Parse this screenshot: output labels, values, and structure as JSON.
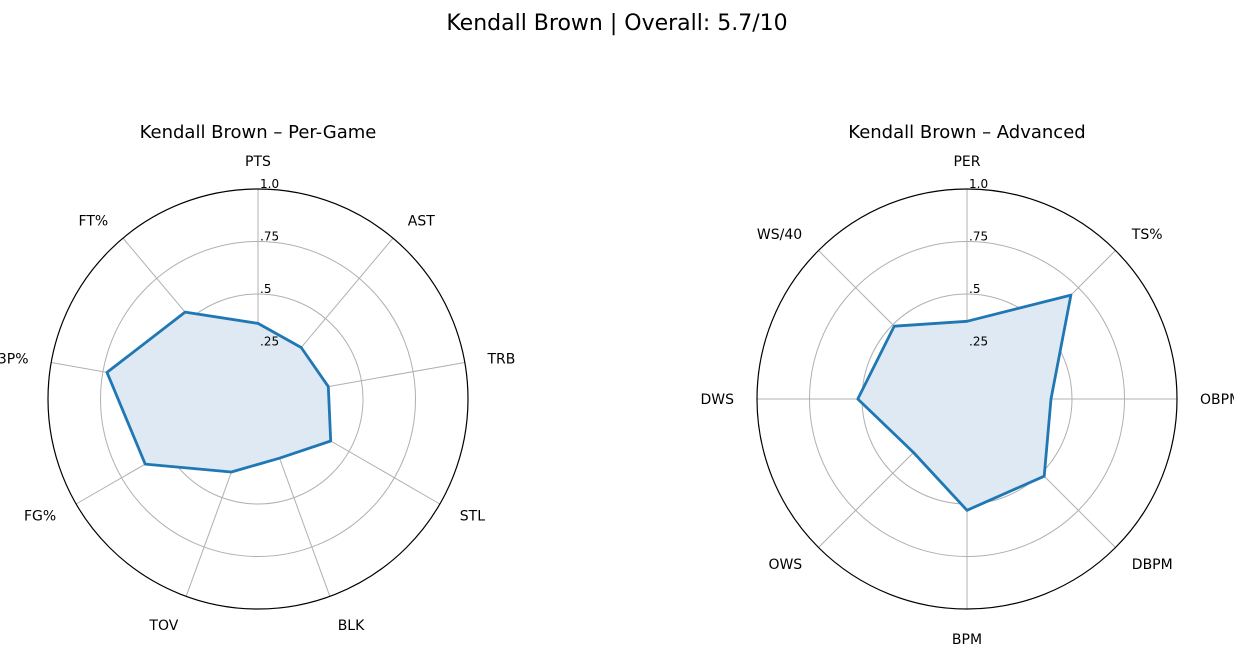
{
  "figure": {
    "title": "Kendall Brown | Overall: 5.7/10"
  },
  "chart_data": [
    {
      "type": "radar",
      "title": "Kendall Brown – Per-Game",
      "categories": [
        "PTS",
        "AST",
        "TRB",
        "STL",
        "BLK",
        "TOV",
        "FG%",
        "3P%",
        "FT%"
      ],
      "values": [
        0.36,
        0.32,
        0.34,
        0.4,
        0.3,
        0.37,
        0.62,
        0.73,
        0.54
      ],
      "rlim": [
        0,
        1.0
      ],
      "rticks": [
        0.25,
        0.5,
        0.75,
        1.0
      ],
      "rtick_labels": [
        ".25",
        ".5",
        ".75",
        "1.0"
      ],
      "color": "#1f77b4",
      "fill_color": "#dee9f3",
      "grid": true
    },
    {
      "type": "radar",
      "title": "Kendall Brown – Advanced",
      "categories": [
        "PER",
        "TS%",
        "OBPM",
        "DBPM",
        "BPM",
        "OWS",
        "DWS",
        "WS/40"
      ],
      "values": [
        0.37,
        0.7,
        0.4,
        0.52,
        0.53,
        0.36,
        0.52,
        0.49
      ],
      "rlim": [
        0,
        1.0
      ],
      "rticks": [
        0.25,
        0.5,
        0.75,
        1.0
      ],
      "rtick_labels": [
        ".25",
        ".5",
        ".75",
        "1.0"
      ],
      "color": "#1f77b4",
      "fill_color": "#dee9f3",
      "grid": true
    }
  ]
}
